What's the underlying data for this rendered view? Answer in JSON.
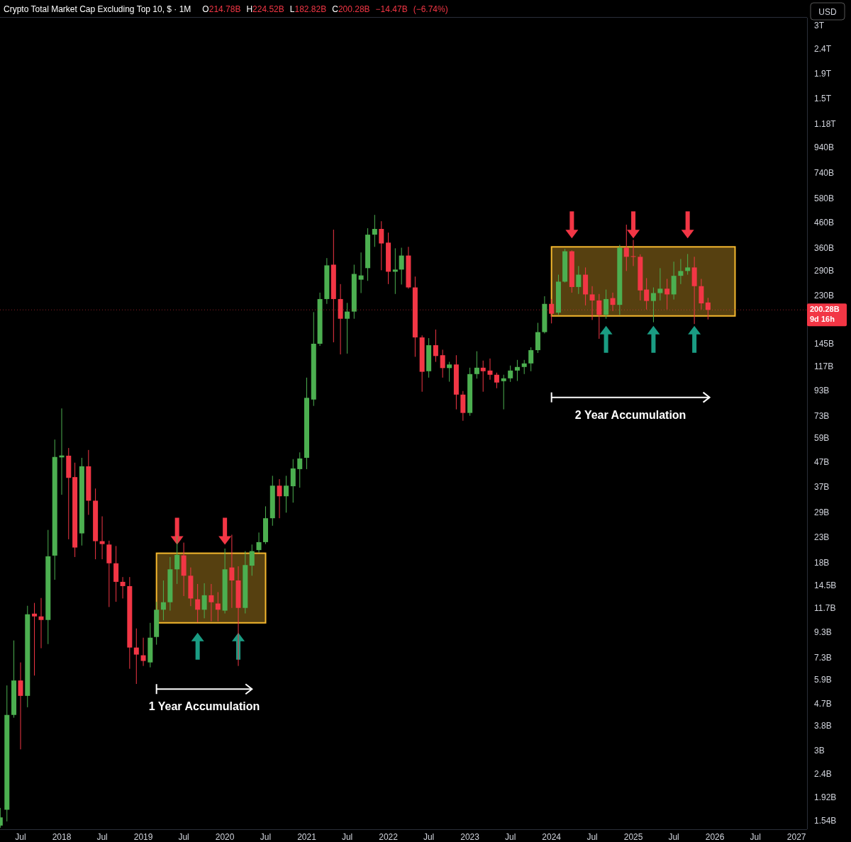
{
  "chart_data": {
    "type": "candlestick",
    "title": "Crypto Total Market Cap Excluding Top 10, $ · 1M",
    "subtitle": "O214.78B H224.52B L182.82B C200.28B −14.47B (−6.74%)",
    "ylabel": "USD",
    "log": "y",
    "x": [
      "2017-04",
      "2017-05",
      "2017-06",
      "2017-07",
      "2017-08",
      "2017-09",
      "2017-10",
      "2017-11",
      "2017-12",
      "2018-01",
      "2018-02",
      "2018-03",
      "2018-04",
      "2018-05",
      "2018-06",
      "2018-07",
      "2018-08",
      "2018-09",
      "2018-10",
      "2018-11",
      "2018-12",
      "2019-01",
      "2019-02",
      "2019-03",
      "2019-04",
      "2019-05",
      "2019-06",
      "2019-07",
      "2019-08",
      "2019-09",
      "2019-10",
      "2019-11",
      "2019-12",
      "2020-01",
      "2020-02",
      "2020-03",
      "2020-04",
      "2020-05",
      "2020-06",
      "2020-07",
      "2020-08",
      "2020-09",
      "2020-10",
      "2020-11",
      "2020-12",
      "2021-01",
      "2021-02",
      "2021-03",
      "2021-04",
      "2021-05",
      "2021-06",
      "2021-07",
      "2021-08",
      "2021-09",
      "2021-10",
      "2021-11",
      "2021-12",
      "2022-01",
      "2022-02",
      "2022-03",
      "2022-04",
      "2022-05",
      "2022-06",
      "2022-07",
      "2022-08",
      "2022-09",
      "2022-10",
      "2022-11",
      "2022-12",
      "2023-01",
      "2023-02",
      "2023-03",
      "2023-04",
      "2023-05",
      "2023-06",
      "2023-07",
      "2023-08",
      "2023-09",
      "2023-10",
      "2023-11",
      "2023-12",
      "2024-01",
      "2024-02",
      "2024-03",
      "2024-04",
      "2024-05",
      "2024-06",
      "2024-07",
      "2024-08",
      "2024-09",
      "2024-10",
      "2024-11",
      "2024-12",
      "2025-01",
      "2025-02",
      "2025-03",
      "2025-04",
      "2025-05",
      "2025-06",
      "2025-07",
      "2025-08",
      "2025-09",
      "2025-10",
      "2025-11",
      "2025-12"
    ],
    "ohlc": [
      [
        1470000000.0,
        1740000000.0,
        1440000000.0,
        1590000000.0
      ],
      [
        1710000000.0,
        5590000000.0,
        1530000000.0,
        4220000000.0
      ],
      [
        4220000000.0,
        8580000000.0,
        4110000000.0,
        5860000000.0
      ],
      [
        5860000000.0,
        6960000000.0,
        3040000000.0,
        5060000000.0
      ],
      [
        5060000000.0,
        11940000000.0,
        4540000000.0,
        11010000000.0
      ],
      [
        11080000000.0,
        12270000000.0,
        6140000000.0,
        10790000000.0
      ],
      [
        10790000000.0,
        12860000000.0,
        7970000000.0,
        10430000000.0
      ],
      [
        10430000000.0,
        24600000000.0,
        8290000000.0,
        19130000000.0
      ],
      [
        19260000000.0,
        58200000000.0,
        15300000000.0,
        49300000000.0
      ],
      [
        49100000000.0,
        78300000000.0,
        34400000000.0,
        50000000000.0
      ],
      [
        49900000000.0,
        53700000000.0,
        22500000000.0,
        40400000000.0
      ],
      [
        40700000000.0,
        46700000000.0,
        19000000000.0,
        20800000000.0
      ],
      [
        23800000000.0,
        48900000000.0,
        21200000000.0,
        45100000000.0
      ],
      [
        45100000000.0,
        52700000000.0,
        28400000000.0,
        32500000000.0
      ],
      [
        32500000000.0,
        36500000000.0,
        18600000000.0,
        22100000000.0
      ],
      [
        22100000000.0,
        28000000000.0,
        18600000000.0,
        21500000000.0
      ],
      [
        21400000000.0,
        22200000000.0,
        11800000000.0,
        17900000000.0
      ],
      [
        17900000000.0,
        21100000000.0,
        12400000000.0,
        15000000000.0
      ],
      [
        15000000000.0,
        15700000000.0,
        12800000000.0,
        14400000000.0
      ],
      [
        14400000000.0,
        15700000000.0,
        6550000000.0,
        8020000000.0
      ],
      [
        8020000000.0,
        9620000000.0,
        5670000000.0,
        7500000000.0
      ],
      [
        7450000000.0,
        8810000000.0,
        6730000000.0,
        7060000000.0
      ],
      [
        6960000000.0,
        10150000000.0,
        6640000000.0,
        8810000000.0
      ],
      [
        8870000000.0,
        12400000000.0,
        8240000000.0,
        11500000000.0
      ],
      [
        11500000000.0,
        15200000000.0,
        10400000000.0,
        12350000000.0
      ],
      [
        12350000000.0,
        19000000000.0,
        11400000000.0,
        16900000000.0
      ],
      [
        16900000000.0,
        23200000000.0,
        14700000000.0,
        19400000000.0
      ],
      [
        19300000000.0,
        21800000000.0,
        13100000000.0,
        15900000000.0
      ],
      [
        15900000000.0,
        17200000000.0,
        11900000000.0,
        12800000000.0
      ],
      [
        12700000000.0,
        14700000000.0,
        10200000000.0,
        11500000000.0
      ],
      [
        11500000000.0,
        14800000000.0,
        10600000000.0,
        13200000000.0
      ],
      [
        13200000000.0,
        14700000000.0,
        10300000000.0,
        12350000000.0
      ],
      [
        12200000000.0,
        13600000000.0,
        10300000000.0,
        11500000000.0
      ],
      [
        11400000000.0,
        20600000000.0,
        11100000000.0,
        16900000000.0
      ],
      [
        17200000000.0,
        23500000000.0,
        11700000000.0,
        15200000000.0
      ],
      [
        15200000000.0,
        17400000000.0,
        6730000000.0,
        11700000000.0
      ],
      [
        11700000000.0,
        20100000000.0,
        11100000000.0,
        17600000000.0
      ],
      [
        17500000000.0,
        21400000000.0,
        15900000000.0,
        20100000000.0
      ],
      [
        20300000000.0,
        24000000000.0,
        19800000000.0,
        21900000000.0
      ],
      [
        21900000000.0,
        30800000000.0,
        21500000000.0,
        27500000000.0
      ],
      [
        27500000000.0,
        41200000000.0,
        25600000000.0,
        37500000000.0
      ],
      [
        37500000000.0,
        39900000000.0,
        27500000000.0,
        33900000000.0
      ],
      [
        33900000000.0,
        41200000000.0,
        29000000000.0,
        37500000000.0
      ],
      [
        37300000000.0,
        48300000000.0,
        31900000000.0,
        44200000000.0
      ],
      [
        43900000000.0,
        51500000000.0,
        36800000000.0,
        48600000000.0
      ],
      [
        48900000000.0,
        105000000000.0,
        43900000000.0,
        86600000000.0
      ],
      [
        85200000000.0,
        196000000000.0,
        80200000000.0,
        145000000000.0
      ],
      [
        145000000000.0,
        236000000000.0,
        142000000000.0,
        222000000000.0
      ],
      [
        222000000000.0,
        328000000000.0,
        212000000000.0,
        306000000000.0
      ],
      [
        308000000000.0,
        430000000000.0,
        147000000000.0,
        222000000000.0
      ],
      [
        222000000000.0,
        256000000000.0,
        131000000000.0,
        184000000000.0
      ],
      [
        184000000000.0,
        214000000000.0,
        132000000000.0,
        197000000000.0
      ],
      [
        197000000000.0,
        308000000000.0,
        184000000000.0,
        282000000000.0
      ],
      [
        267000000000.0,
        346000000000.0,
        235000000000.0,
        278000000000.0
      ],
      [
        298000000000.0,
        436000000000.0,
        264000000000.0,
        410000000000.0
      ],
      [
        410000000000.0,
        495000000000.0,
        365000000000.0,
        433000000000.0
      ],
      [
        433000000000.0,
        466000000000.0,
        292000000000.0,
        377000000000.0
      ],
      [
        380000000000.0,
        418000000000.0,
        256000000000.0,
        288000000000.0
      ],
      [
        288000000000.0,
        360000000000.0,
        233000000000.0,
        294000000000.0
      ],
      [
        294000000000.0,
        362000000000.0,
        255000000000.0,
        336000000000.0
      ],
      [
        336000000000.0,
        365000000000.0,
        245000000000.0,
        248000000000.0
      ],
      [
        248000000000.0,
        275000000000.0,
        128000000000.0,
        154000000000.0
      ],
      [
        154000000000.0,
        157000000000.0,
        91800000000.0,
        111000000000.0
      ],
      [
        111600000000.0,
        153000000000.0,
        105000000000.0,
        143000000000.0
      ],
      [
        143000000000.0,
        166000000000.0,
        122000000000.0,
        129000000000.0
      ],
      [
        130000000000.0,
        137000000000.0,
        105000000000.0,
        115000000000.0
      ],
      [
        115000000000.0,
        122000000000.0,
        101000000000.0,
        119000000000.0
      ],
      [
        119000000000.0,
        130000000000.0,
        77600000000.0,
        89300000000.0
      ],
      [
        89300000000.0,
        92400000000.0,
        69600000000.0,
        75000000000.0
      ],
      [
        75000000000.0,
        115400000000.0,
        73000000000.0,
        108600000000.0
      ],
      [
        108600000000.0,
        135000000000.0,
        104000000000.0,
        115400000000.0
      ],
      [
        115400000000.0,
        123500000000.0,
        91800000000.0,
        111600000000.0
      ],
      [
        112300000000.0,
        126000000000.0,
        102900000000.0,
        107900000000.0
      ],
      [
        107900000000.0,
        110100000000.0,
        94900000000.0,
        100200000000.0
      ],
      [
        101500000000.0,
        107900000000.0,
        77600000000.0,
        104300000000.0
      ],
      [
        104300000000.0,
        117800000000.0,
        100800000000.0,
        112300000000.0
      ],
      [
        112300000000.0,
        124300000000.0,
        101700000000.0,
        116200000000.0
      ],
      [
        116200000000.0,
        124300000000.0,
        108600000000.0,
        120200000000.0
      ],
      [
        120200000000.0,
        140200000000.0,
        111600000000.0,
        136400000000.0
      ],
      [
        136400000000.0,
        177000000000.0,
        132800000000.0,
        162000000000.0
      ],
      [
        162000000000.0,
        228000000000.0,
        160000000000.0,
        212000000000.0
      ],
      [
        212000000000.0,
        222000000000.0,
        176000000000.0,
        193000000000.0
      ],
      [
        195000000000.0,
        280000000000.0,
        191000000000.0,
        262000000000.0
      ],
      [
        262000000000.0,
        358000000000.0,
        260000000000.0,
        350000000000.0
      ],
      [
        350000000000.0,
        353000000000.0,
        236000000000.0,
        249000000000.0
      ],
      [
        249000000000.0,
        304000000000.0,
        233000000000.0,
        280000000000.0
      ],
      [
        280000000000.0,
        300000000000.0,
        209000000000.0,
        232000000000.0
      ],
      [
        232000000000.0,
        251000000000.0,
        182000000000.0,
        219000000000.0
      ],
      [
        219000000000.0,
        233000000000.0,
        152000000000.0,
        191000000000.0
      ],
      [
        191000000000.0,
        243000000000.0,
        184000000000.0,
        222000000000.0
      ],
      [
        224000000000.0,
        236000000000.0,
        198000000000.0,
        210000000000.0
      ],
      [
        210000000000.0,
        372000000000.0,
        191000000000.0,
        362000000000.0
      ],
      [
        362000000000.0,
        451000000000.0,
        290000000000.0,
        332000000000.0
      ],
      [
        334000000000.0,
        390000000000.0,
        304000000000.0,
        332000000000.0
      ],
      [
        332000000000.0,
        340000000000.0,
        219000000000.0,
        241000000000.0
      ],
      [
        243000000000.0,
        271000000000.0,
        201000000000.0,
        218000000000.0
      ],
      [
        218000000000.0,
        248000000000.0,
        178000000000.0,
        235000000000.0
      ],
      [
        235000000000.0,
        298000000000.0,
        219000000000.0,
        245000000000.0
      ],
      [
        245000000000.0,
        269000000000.0,
        201000000000.0,
        232000000000.0
      ],
      [
        232000000000.0,
        317000000000.0,
        221000000000.0,
        277000000000.0
      ],
      [
        277000000000.0,
        325000000000.0,
        256000000000.0,
        290000000000.0
      ],
      [
        290000000000.0,
        341000000000.0,
        280000000000.0,
        300000000000.0
      ],
      [
        300000000000.0,
        332000000000.0,
        175000000000.0,
        251000000000.0
      ],
      [
        251000000000.0,
        269000000000.0,
        201000000000.0,
        213000000000.0
      ],
      [
        214780000000.0,
        224520000000.0,
        182820000000.0,
        200280000000.0
      ]
    ],
    "xlim": [
      "2017-03-31",
      "2027-02-17"
    ],
    "xticks": [
      {
        "value": "2017-07",
        "label": "Jul"
      },
      "2018",
      {
        "value": "2018-07",
        "label": "Jul"
      },
      "2019",
      {
        "value": "2019-07",
        "label": "Jul"
      },
      "2020",
      {
        "value": "2020-07",
        "label": "Jul"
      },
      "2021",
      {
        "value": "2021-07",
        "label": "Jul"
      },
      "2022",
      {
        "value": "2022-07",
        "label": "Jul"
      },
      "2023",
      {
        "value": "2023-07",
        "label": "Jul"
      },
      "2024",
      {
        "value": "2024-07",
        "label": "Jul"
      },
      "2025",
      {
        "value": "2025-07",
        "label": "Jul"
      },
      "2026",
      {
        "value": "2026-07",
        "label": "Jul"
      },
      "2027"
    ],
    "ylim": [
      1420000000.0,
      3240000000000.0
    ],
    "yticks": [
      {
        "value": 3000000000000.0,
        "label": "3T"
      },
      {
        "value": 2400000000000.0,
        "label": "2.4T"
      },
      {
        "value": 1900000000000.0,
        "label": "1.9T"
      },
      {
        "value": 1500000000000.0,
        "label": "1.5T"
      },
      {
        "value": 1180000000000.0,
        "label": "1.18T"
      },
      {
        "value": 940000000000.0,
        "label": "940B"
      },
      {
        "value": 740000000000.0,
        "label": "740B"
      },
      {
        "value": 580000000000.0,
        "label": "580B"
      },
      {
        "value": 460000000000.0,
        "label": "460B"
      },
      {
        "value": 360000000000.0,
        "label": "360B"
      },
      {
        "value": 290000000000.0,
        "label": "290B"
      },
      {
        "value": 230000000000.0,
        "label": "230B"
      },
      {
        "value": 145000000000.0,
        "label": "145B"
      },
      {
        "value": 117000000000.0,
        "label": "117B"
      },
      {
        "value": 93000000000.0,
        "label": "93B"
      },
      {
        "value": 73000000000.0,
        "label": "73B"
      },
      {
        "value": 59000000000.0,
        "label": "59B"
      },
      {
        "value": 47000000000.0,
        "label": "47B"
      },
      {
        "value": 37000000000.0,
        "label": "37B"
      },
      {
        "value": 29000000000.0,
        "label": "29B"
      },
      {
        "value": 23000000000.0,
        "label": "23B"
      },
      {
        "value": 18000000000.0,
        "label": "18B"
      },
      {
        "value": 14500000000.0,
        "label": "14.5B"
      },
      {
        "value": 11700000000.0,
        "label": "11.7B"
      },
      {
        "value": 9300000000.0,
        "label": "9.3B"
      },
      {
        "value": 7300000000.0,
        "label": "7.3B"
      },
      {
        "value": 5900000000.0,
        "label": "5.9B"
      },
      {
        "value": 4700000000.0,
        "label": "4.7B"
      },
      {
        "value": 3800000000.0,
        "label": "3.8B"
      },
      {
        "value": 3000000000.0,
        "label": "3B"
      },
      {
        "value": 2400000000.0,
        "label": "2.4B"
      },
      {
        "value": 1920000000.0,
        "label": "1.92B"
      },
      {
        "value": 1540000000.0,
        "label": "1.54B"
      }
    ],
    "ref_lines": [
      {
        "axis": "y",
        "value": 200280000000.0,
        "label": "200.28B\n9d 16h",
        "color": "#f23645",
        "line_style": "dotted"
      }
    ],
    "annotations": [
      "1 Year Accumulation",
      "2 Year Accumulation"
    ]
  }
}
